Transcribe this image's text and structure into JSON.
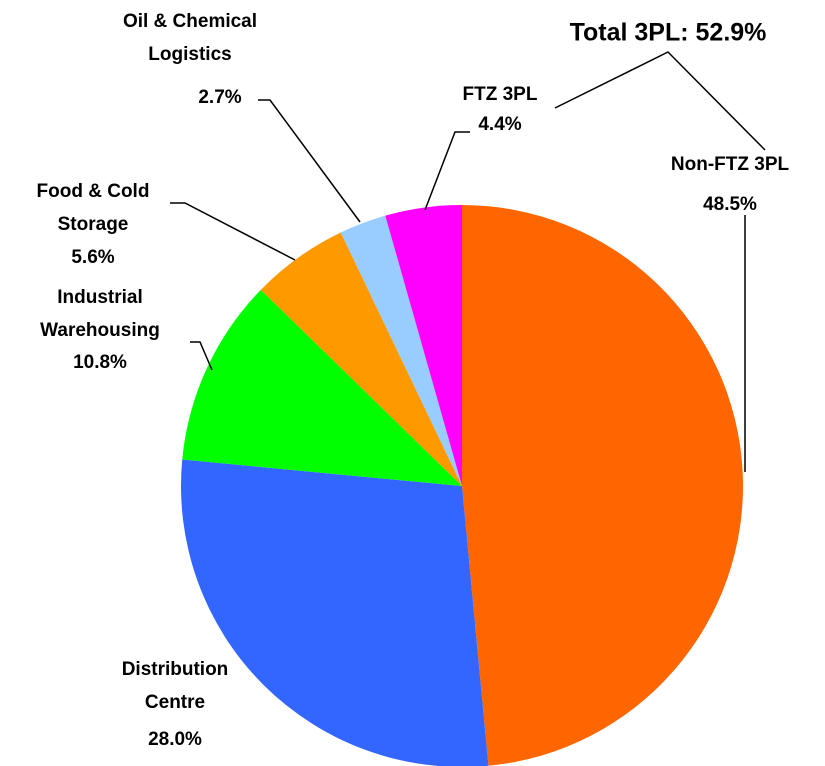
{
  "chart_data": {
    "type": "pie",
    "categories": [
      [
        "Non-FTZ 3PL"
      ],
      [
        "Distribution",
        "Centre"
      ],
      [
        "Industrial",
        "Warehousing"
      ],
      [
        "Food & Cold",
        "Storage"
      ],
      [
        "Oil & Chemical",
        "Logistics"
      ],
      [
        "FTZ 3PL"
      ]
    ],
    "values": [
      48.5,
      28.0,
      10.8,
      5.6,
      2.7,
      4.4
    ],
    "value_labels": [
      "48.5%",
      "28.0%",
      "10.8%",
      "5.6%",
      "2.7%",
      "4.4%"
    ],
    "colors": [
      "#ff6600",
      "#3366ff",
      "#00ff00",
      "#ff9900",
      "#99ccff",
      "#ff00ff"
    ],
    "annotation": "Total 3PL: 52.9%"
  }
}
